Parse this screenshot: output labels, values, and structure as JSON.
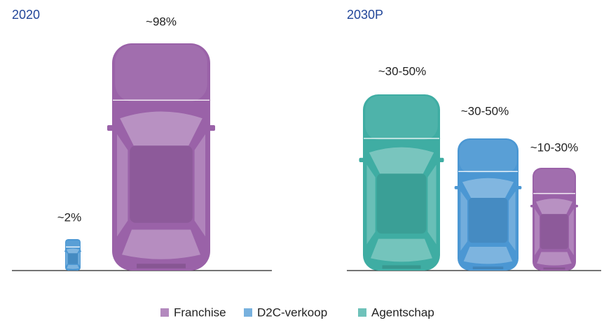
{
  "panels": [
    {
      "title": "2020",
      "cars": [
        {
          "label": "~2%",
          "legend": 1
        },
        {
          "label": "~98%",
          "legend": 0
        }
      ]
    },
    {
      "title": "2030P",
      "cars": [
        {
          "label": "~30-50%",
          "legend": 2
        },
        {
          "label": "~30-50%",
          "legend": 1
        },
        {
          "label": "~10-30%",
          "legend": 0
        }
      ]
    }
  ],
  "legend": [
    {
      "name": "Franchise",
      "color": "#9a62a8"
    },
    {
      "name": "D2C-verkoop",
      "color": "#4b97d3"
    },
    {
      "name": "Agentschap",
      "color": "#3fada3"
    }
  ]
}
